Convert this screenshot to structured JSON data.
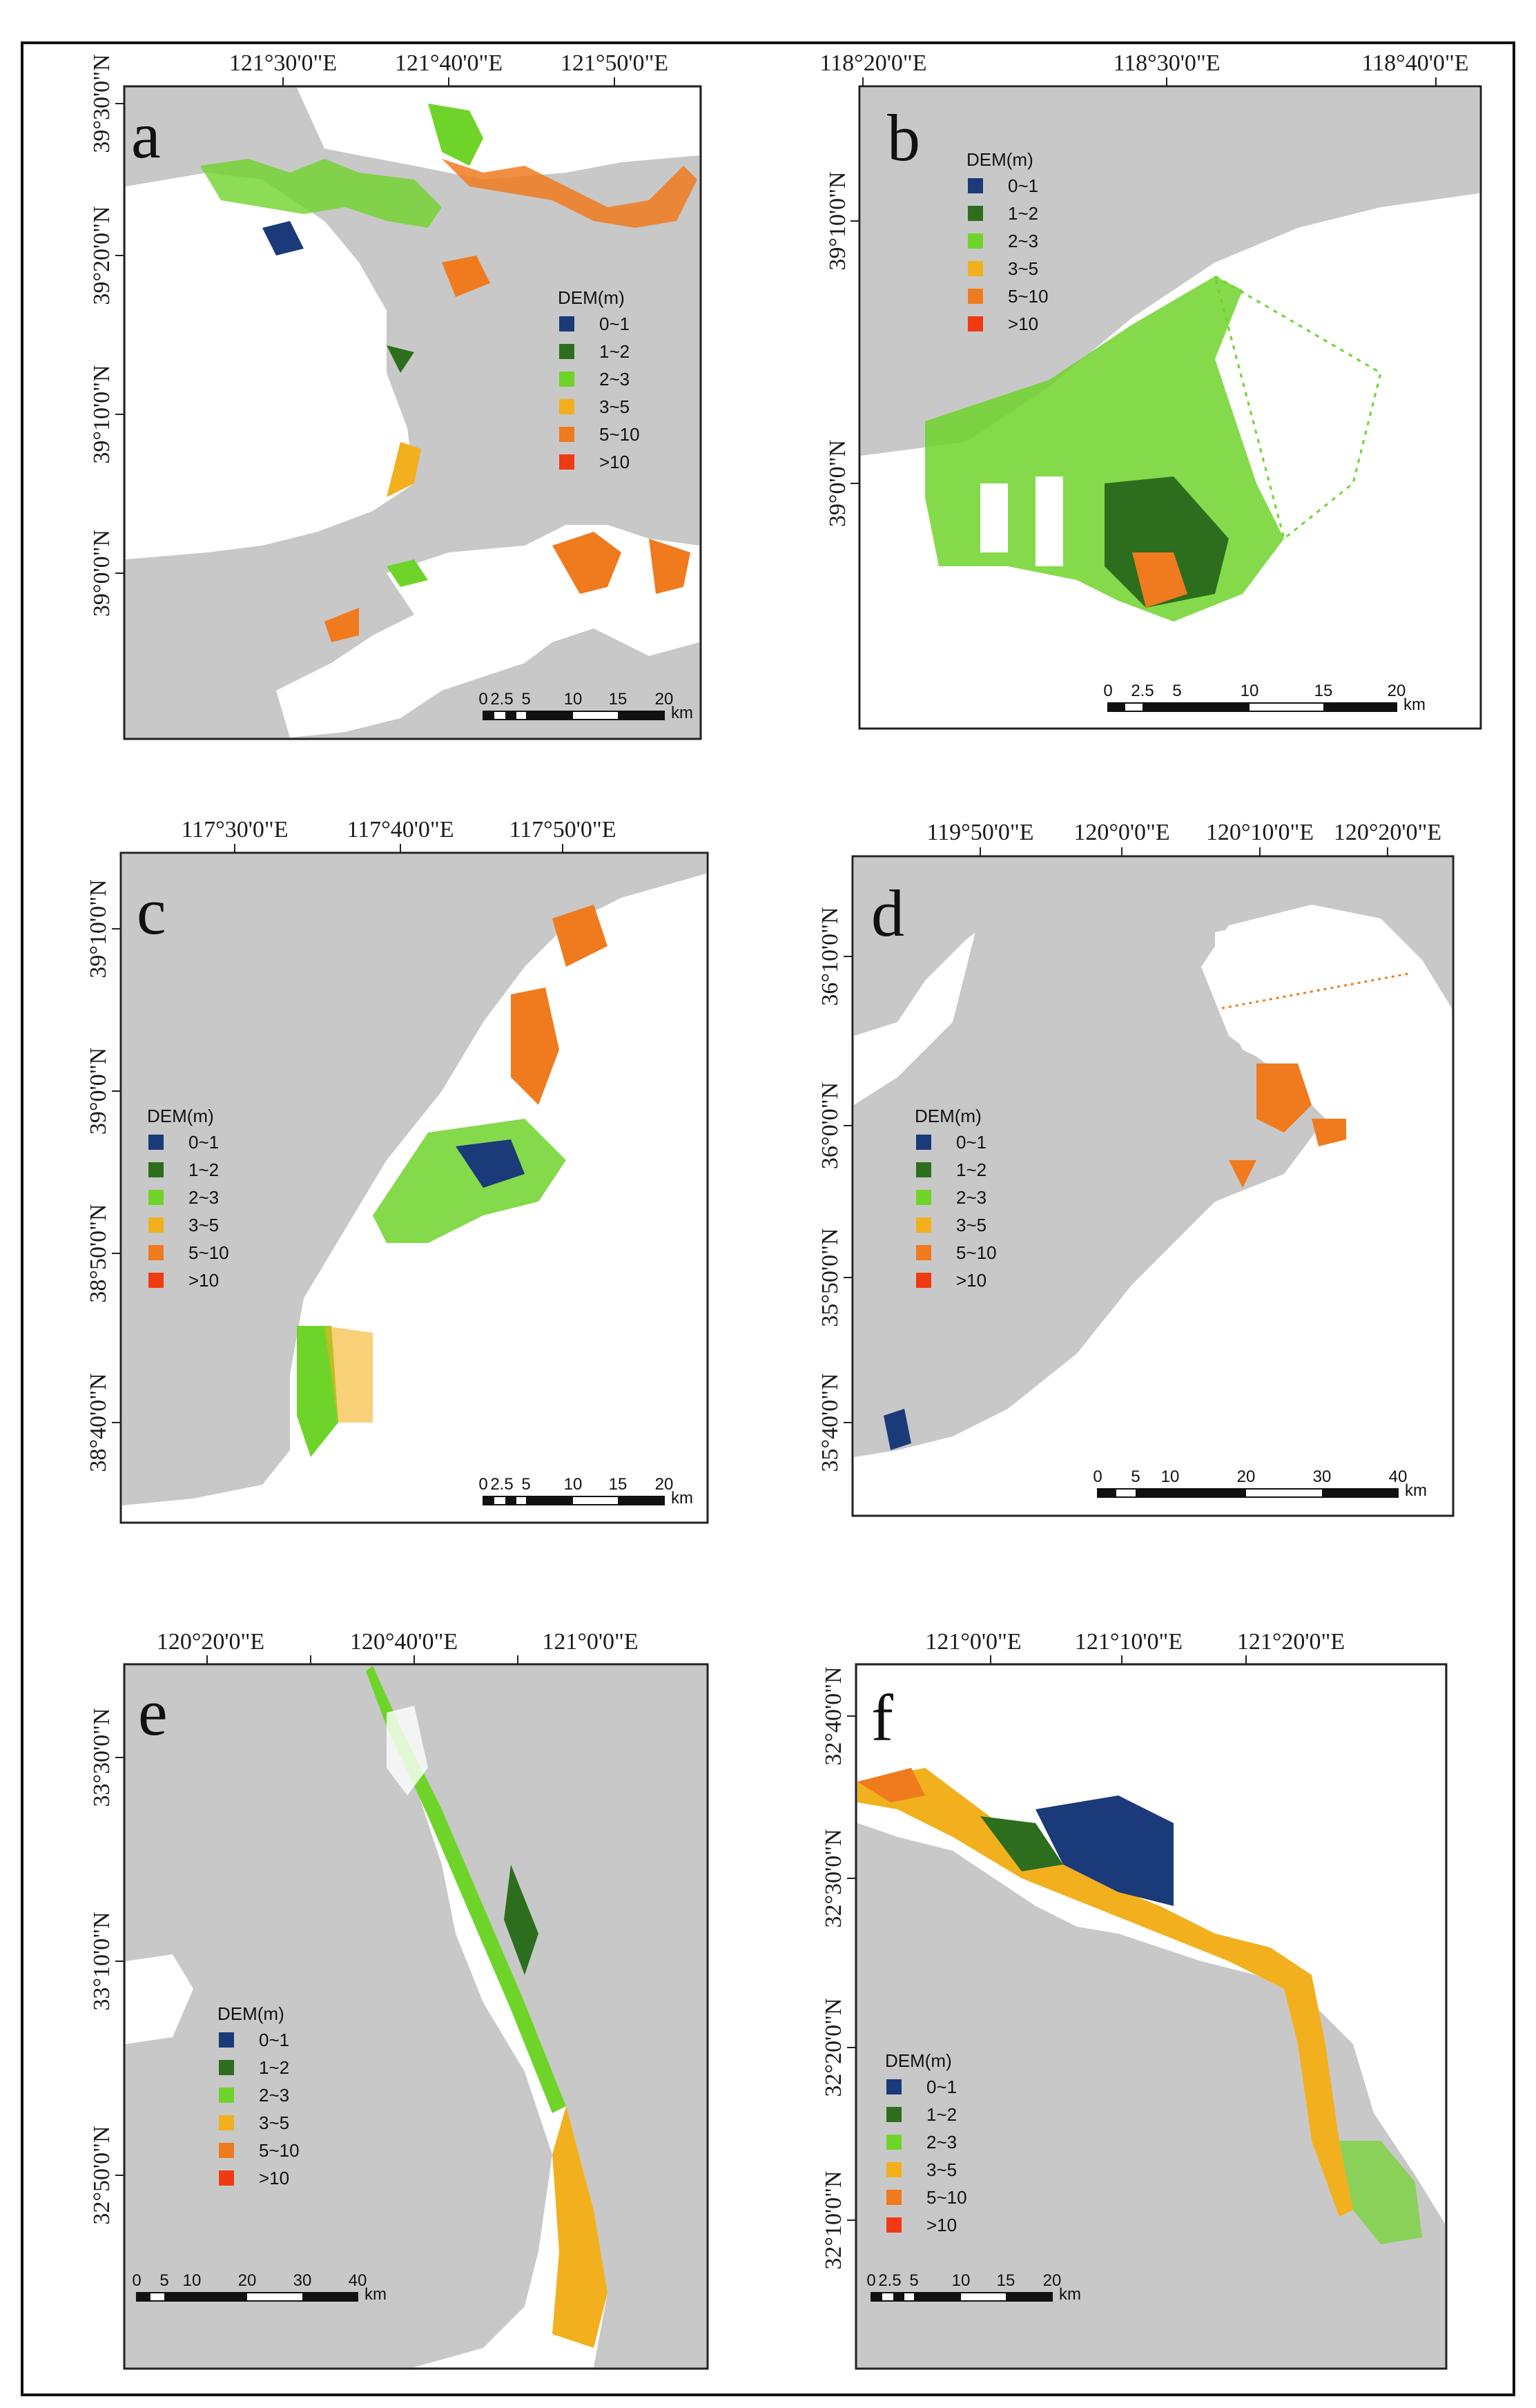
{
  "legend": {
    "title": "DEM(m)",
    "classes": [
      {
        "label": "0~1",
        "color": "#1a3a7a"
      },
      {
        "label": "1~2",
        "color": "#2d6e1e"
      },
      {
        "label": "2~3",
        "color": "#6fd42a"
      },
      {
        "label": "3~5",
        "color": "#f2b01e"
      },
      {
        "label": "5~10",
        "color": "#f07a1e"
      },
      {
        "label": ">10",
        "color": "#f03a14"
      }
    ]
  },
  "colors": {
    "sea": "#c8c8c8",
    "land": "#ffffff"
  },
  "panels": [
    {
      "letter": "a",
      "lon_labels": [
        "121°30'0\"E",
        "121°40'0\"E",
        "121°50'0\"E"
      ],
      "lat_labels": [
        "39°30'0\"N",
        "39°20'0\"N",
        "39°10'0\"N",
        "39°0'0\"N"
      ],
      "scale_ticks": [
        "0",
        "2.5",
        "5",
        "10",
        "15",
        "20"
      ],
      "scale_unit": "km"
    },
    {
      "letter": "b",
      "lon_labels": [
        "118°20'0\"E",
        "118°30'0\"E",
        "118°40'0\"E"
      ],
      "lat_labels": [
        "39°10'0\"N",
        "39°0'0\"N"
      ],
      "scale_ticks": [
        "0",
        "2.5",
        "5",
        "10",
        "15",
        "20"
      ],
      "scale_unit": "km"
    },
    {
      "letter": "c",
      "lon_labels": [
        "117°30'0\"E",
        "117°40'0\"E",
        "117°50'0\"E"
      ],
      "lat_labels": [
        "39°10'0\"N",
        "39°0'0\"N",
        "38°50'0\"N",
        "38°40'0\"N"
      ],
      "scale_ticks": [
        "0",
        "2.5",
        "5",
        "10",
        "15",
        "20"
      ],
      "scale_unit": "km"
    },
    {
      "letter": "d",
      "lon_labels": [
        "119°50'0\"E",
        "120°0'0\"E",
        "120°10'0\"E",
        "120°20'0\"E"
      ],
      "lat_labels": [
        "36°10'0\"N",
        "36°0'0\"N",
        "35°50'0\"N",
        "35°40'0\"N"
      ],
      "scale_ticks": [
        "0",
        "5",
        "10",
        "20",
        "30",
        "40"
      ],
      "scale_unit": "km"
    },
    {
      "letter": "e",
      "lon_labels": [
        "120°20'0\"E",
        "120°40'0\"E",
        "121°0'0\"E"
      ],
      "lat_labels": [
        "33°30'0\"N",
        "33°10'0\"N",
        "32°50'0\"N"
      ],
      "scale_ticks": [
        "0",
        "5",
        "10",
        "20",
        "30",
        "40"
      ],
      "scale_unit": "km"
    },
    {
      "letter": "f",
      "lon_labels": [
        "121°0'0\"E",
        "121°10'0\"E",
        "121°20'0\"E"
      ],
      "lat_labels": [
        "32°40'0\"N",
        "32°30'0\"N",
        "32°20'0\"N",
        "32°10'0\"N"
      ],
      "scale_ticks": [
        "0",
        "2.5",
        "5",
        "10",
        "15",
        "20"
      ],
      "scale_unit": "km"
    }
  ]
}
